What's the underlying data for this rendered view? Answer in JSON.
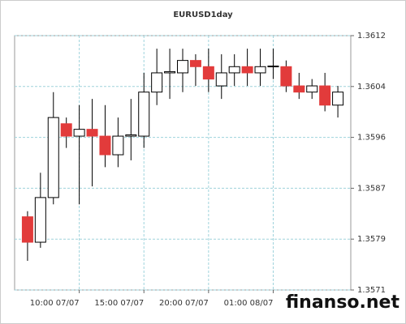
{
  "chart_data": {
    "type": "candlestick",
    "title": "EURUSD1day",
    "categories": [
      null,
      null,
      null,
      null,
      "10:00 07/07",
      null,
      null,
      null,
      null,
      "15:00 07/07",
      null,
      null,
      null,
      null,
      "20:00 07/07",
      null,
      null,
      null,
      null,
      "01:00 08/07",
      null,
      null,
      null,
      null,
      null
    ],
    "open": [
      1.35828,
      1.35787,
      1.35859,
      1.35978,
      1.35958,
      1.35969,
      1.35958,
      1.35928,
      1.35958,
      1.35958,
      1.36029,
      1.3606,
      1.3606,
      1.3608,
      1.3607,
      1.36039,
      1.3606,
      1.3607,
      1.3606,
      1.3607,
      1.3607,
      1.36039,
      1.36029,
      1.36039,
      1.36008
    ],
    "high": [
      1.35837,
      1.35899,
      1.36029,
      1.35988,
      1.36008,
      1.36018,
      1.36008,
      1.35988,
      1.36018,
      1.3606,
      1.36099,
      1.36099,
      1.36099,
      1.3609,
      1.36099,
      1.3609,
      1.3609,
      1.36099,
      1.36099,
      1.36099,
      1.3608,
      1.3606,
      1.3605,
      1.3606,
      1.36039
    ],
    "low": [
      1.35757,
      1.35778,
      1.35848,
      1.35939,
      1.35848,
      1.35877,
      1.35908,
      1.35908,
      1.35919,
      1.35939,
      1.36008,
      1.36018,
      1.36029,
      1.36039,
      1.36029,
      1.36018,
      1.36039,
      1.36039,
      1.36039,
      1.3605,
      1.36029,
      1.36018,
      1.36018,
      1.35998,
      1.35988
    ],
    "close": [
      1.35787,
      1.35859,
      1.35988,
      1.35958,
      1.35969,
      1.35958,
      1.35928,
      1.35958,
      1.3596,
      1.36029,
      1.3606,
      1.36062,
      1.3608,
      1.3607,
      1.3605,
      1.3606,
      1.3607,
      1.3606,
      1.3607,
      1.36071,
      1.36039,
      1.36029,
      1.36039,
      1.36008,
      1.36029
    ],
    "up_color": "#ffffff",
    "down_color": "#e23b3b",
    "ylim": [
      1.3571,
      1.3612
    ],
    "yticks": [
      {
        "value": 1.3571,
        "label": "1.3571"
      },
      {
        "value": 1.35792,
        "label": "1.3579"
      },
      {
        "value": 1.35874,
        "label": "1.3587"
      },
      {
        "value": 1.35956,
        "label": "1.3596"
      },
      {
        "value": 1.36038,
        "label": "1.3604"
      },
      {
        "value": 1.3612,
        "label": "1.3612"
      }
    ],
    "grid": true,
    "watermark": "finanso.net"
  }
}
